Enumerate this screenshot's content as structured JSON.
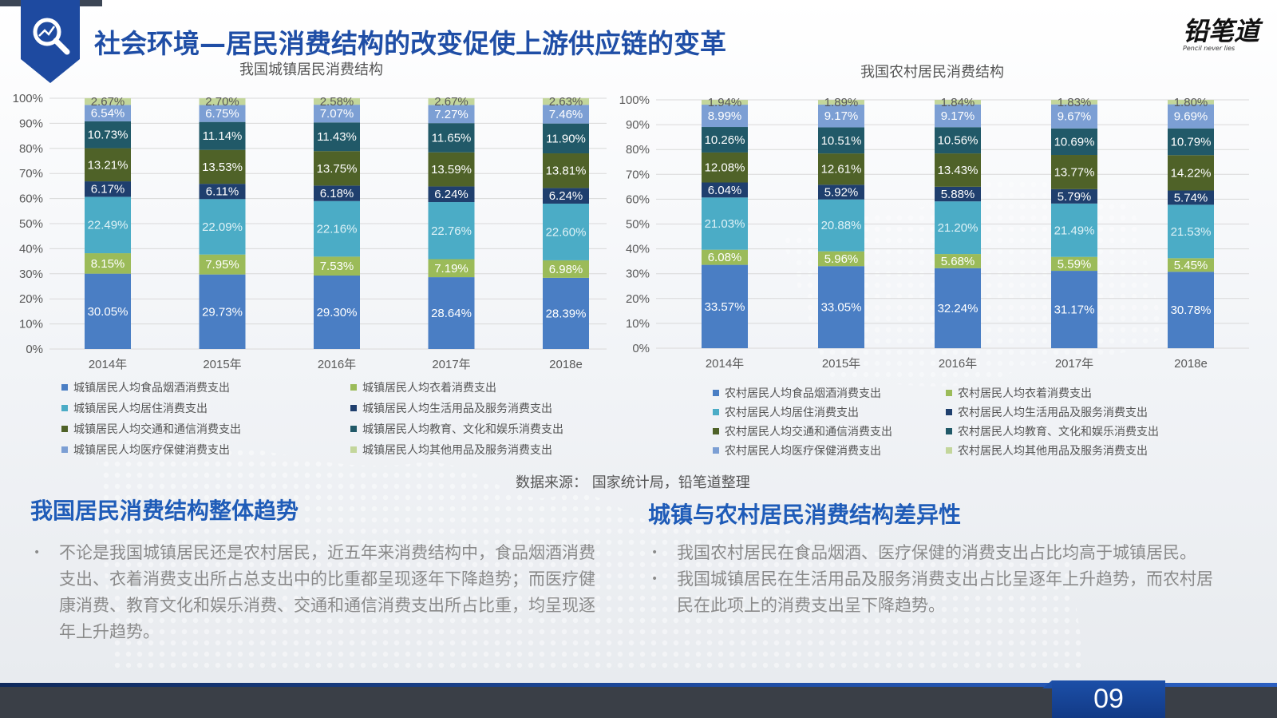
{
  "page": {
    "title": "社会环境—居民消费结构的改变促使上游供应链的变革",
    "logo_text": "铅笔道",
    "logo_sub": "Pencil never lies",
    "page_number": "09",
    "source": "数据来源： 国家统计局，铅笔道整理"
  },
  "colors": {
    "food": "#4a7ec4",
    "clothing": "#9bbb59",
    "housing": "#4bacc6",
    "daily": "#1f3f6e",
    "transport": "#4f6228",
    "education": "#215968",
    "medical": "#7c9fd4",
    "other": "#c3d69b"
  },
  "chart_data": [
    {
      "type": "bar",
      "stacked": true,
      "title": "我国城镇居民消费结构",
      "categories": [
        "2014年",
        "2015年",
        "2016年",
        "2017年",
        "2018e"
      ],
      "ylim": [
        0,
        100
      ],
      "yticks": [
        "0%",
        "10%",
        "20%",
        "30%",
        "40%",
        "50%",
        "60%",
        "70%",
        "80%",
        "90%",
        "100%"
      ],
      "grid": true,
      "legend_position": "bottom",
      "series": [
        {
          "name": "城镇居民人均食品烟酒消费支出",
          "key": "food",
          "values": [
            30.05,
            29.73,
            29.3,
            28.64,
            28.39
          ],
          "labels": [
            "30.05%",
            "29.73%",
            "29.30%",
            "28.64%",
            "28.39%"
          ]
        },
        {
          "name": "城镇居民人均衣着消费支出",
          "key": "clothing",
          "values": [
            8.15,
            7.95,
            7.53,
            7.19,
            6.98
          ],
          "labels": [
            "8.15%",
            "7.95%",
            "7.53%",
            "7.19%",
            "6.98%"
          ]
        },
        {
          "name": "城镇居民人均居住消费支出",
          "key": "housing",
          "values": [
            22.49,
            22.09,
            22.16,
            22.76,
            22.6
          ],
          "labels": [
            "22.49%",
            "22.09%",
            "22.16%",
            "22.76%",
            "22.60%"
          ]
        },
        {
          "name": "城镇居民人均生活用品及服务消费支出",
          "key": "daily",
          "values": [
            6.17,
            6.11,
            6.18,
            6.24,
            6.24
          ],
          "labels": [
            "6.17%",
            "6.11%",
            "6.18%",
            "6.24%",
            "6.24%"
          ]
        },
        {
          "name": "城镇居民人均交通和通信消费支出",
          "key": "transport",
          "values": [
            13.21,
            13.53,
            13.75,
            13.59,
            13.81
          ],
          "labels": [
            "13.21%",
            "13.53%",
            "13.75%",
            "13.59%",
            "13.81%"
          ]
        },
        {
          "name": "城镇居民人均教育、文化和娱乐消费支出",
          "key": "education",
          "values": [
            10.73,
            11.14,
            11.43,
            11.65,
            11.9
          ],
          "labels": [
            "10.73%",
            "11.14%",
            "11.43%",
            "11.65%",
            "11.90%"
          ]
        },
        {
          "name": "城镇居民人均医疗保健消费支出",
          "key": "medical",
          "values": [
            6.54,
            6.75,
            7.07,
            7.27,
            7.46
          ],
          "labels": [
            "6.54%",
            "6.75%",
            "7.07%",
            "7.27%",
            "7.46%"
          ]
        },
        {
          "name": "城镇居民人均其他用品及服务消费支出",
          "key": "other",
          "values": [
            2.67,
            2.7,
            2.58,
            2.67,
            2.63
          ],
          "labels": [
            "2.67%",
            "2.70%",
            "2.58%",
            "2.67%",
            "2.63%"
          ]
        }
      ]
    },
    {
      "type": "bar",
      "stacked": true,
      "title": "我国农村居民消费结构",
      "categories": [
        "2014年",
        "2015年",
        "2016年",
        "2017年",
        "2018e"
      ],
      "ylim": [
        0,
        100
      ],
      "yticks": [
        "0%",
        "10%",
        "20%",
        "30%",
        "40%",
        "50%",
        "60%",
        "70%",
        "80%",
        "90%",
        "100%"
      ],
      "grid": true,
      "legend_position": "bottom",
      "series": [
        {
          "name": "农村居民人均食品烟酒消费支出",
          "key": "food",
          "values": [
            33.57,
            33.05,
            32.24,
            31.17,
            30.78
          ],
          "labels": [
            "33.57%",
            "33.05%",
            "32.24%",
            "31.17%",
            "30.78%"
          ]
        },
        {
          "name": "农村居民人均衣着消费支出",
          "key": "clothing",
          "values": [
            6.08,
            5.96,
            5.68,
            5.59,
            5.45
          ],
          "labels": [
            "6.08%",
            "5.96%",
            "5.68%",
            "5.59%",
            "5.45%"
          ]
        },
        {
          "name": "农村居民人均居住消费支出",
          "key": "housing",
          "values": [
            21.03,
            20.88,
            21.2,
            21.49,
            21.53
          ],
          "labels": [
            "21.03%",
            "20.88%",
            "21.20%",
            "21.49%",
            "21.53%"
          ]
        },
        {
          "name": "农村居民人均生活用品及服务消费支出",
          "key": "daily",
          "values": [
            6.04,
            5.92,
            5.88,
            5.79,
            5.74
          ],
          "labels": [
            "6.04%",
            "5.92%",
            "5.88%",
            "5.79%",
            "5.74%"
          ]
        },
        {
          "name": "农村居民人均交通和通信消费支出",
          "key": "transport",
          "values": [
            12.08,
            12.61,
            13.43,
            13.77,
            14.22
          ],
          "labels": [
            "12.08%",
            "12.61%",
            "13.43%",
            "13.77%",
            "14.22%"
          ]
        },
        {
          "name": "农村居民人均教育、文化和娱乐消费支出",
          "key": "education",
          "values": [
            10.26,
            10.51,
            10.56,
            10.69,
            10.79
          ],
          "labels": [
            "10.26%",
            "10.51%",
            "10.56%",
            "10.69%",
            "10.79%"
          ]
        },
        {
          "name": "农村居民人均医疗保健消费支出",
          "key": "medical",
          "values": [
            8.99,
            9.17,
            9.17,
            9.67,
            9.69
          ],
          "labels": [
            "8.99%",
            "9.17%",
            "9.17%",
            "9.67%",
            "9.69%"
          ]
        },
        {
          "name": "农村居民人均其他用品及服务消费支出",
          "key": "other",
          "values": [
            1.94,
            1.89,
            1.84,
            1.83,
            1.8
          ],
          "labels": [
            "1.94%",
            "1.89%",
            "1.84%",
            "1.83%",
            "1.80%"
          ]
        }
      ]
    }
  ],
  "sections": {
    "left": {
      "title": "我国居民消费结构整体趋势",
      "bullets": [
        "不论是我国城镇居民还是农村居民，近五年来消费结构中，食品烟酒消费支出、衣着消费支出所占总支出中的比重都呈现逐年下降趋势；而医疗健康消费、教育文化和娱乐消费、交通和通信消费支出所占比重，均呈现逐年上升趋势。"
      ]
    },
    "right": {
      "title": "城镇与农村居民消费结构差异性",
      "bullets": [
        "我国农村居民在食品烟酒、医疗保健的消费支出占比均高于城镇居民。",
        "我国城镇居民在生活用品及服务消费支出占比呈逐年上升趋势，而农村居民在此项上的消费支出呈下降趋势。"
      ]
    },
    "bullet_symbol": "•"
  }
}
